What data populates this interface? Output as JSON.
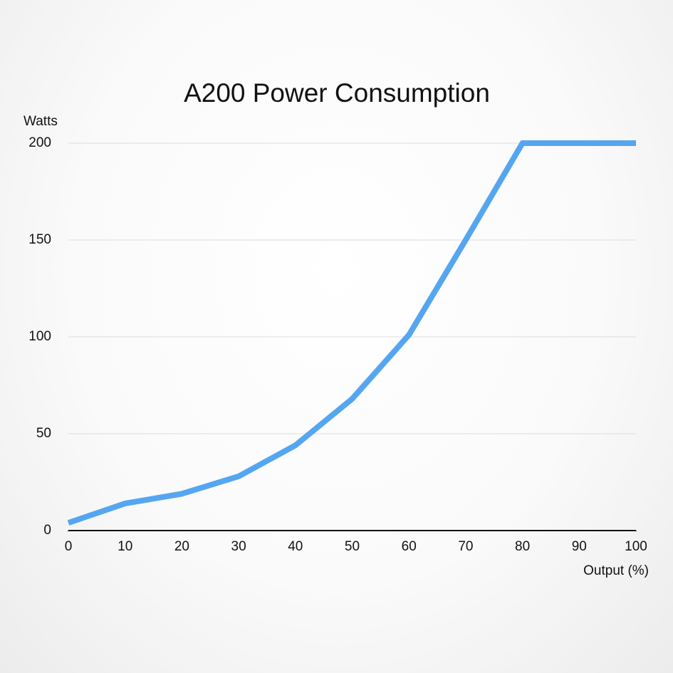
{
  "chart_data": {
    "type": "line",
    "title": "A200 Power Consumption",
    "y_label": "Watts",
    "x_label": "Output (%)",
    "x": [
      0,
      10,
      20,
      30,
      40,
      50,
      60,
      70,
      80,
      90,
      100
    ],
    "series": [
      {
        "name": "A200",
        "color": "#55a6f0",
        "values": [
          4,
          14,
          19,
          28,
          44,
          68,
          101,
          150,
          200,
          200,
          200
        ]
      }
    ],
    "xlim": [
      0,
      100
    ],
    "xticks": [
      0,
      10,
      20,
      30,
      40,
      50,
      60,
      70,
      80,
      90,
      100
    ],
    "ylim": [
      0,
      200
    ],
    "yticks": [
      0,
      50,
      100,
      150,
      200
    ],
    "grid": true
  }
}
